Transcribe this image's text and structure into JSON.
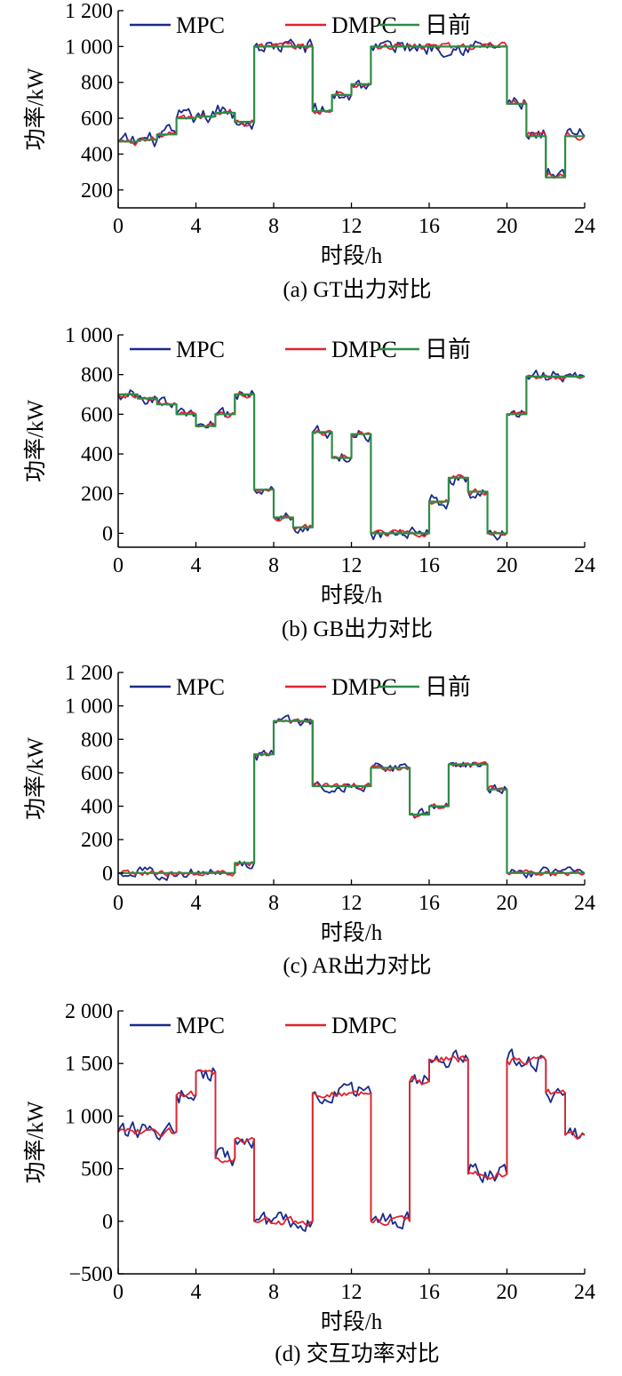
{
  "chart_data": [
    {
      "type": "line",
      "caption": "(a)  GT出力对比",
      "xlabel": "时段/h",
      "ylabel": "功率/kW",
      "xlim": [
        0,
        24
      ],
      "ylim": [
        100,
        1200
      ],
      "xticks": [
        0,
        4,
        8,
        12,
        16,
        20,
        24
      ],
      "xtick_labels": [
        "0",
        "4",
        "8",
        "12",
        "16",
        "20",
        "24"
      ],
      "yticks": [
        200,
        400,
        600,
        800,
        1000,
        1200
      ],
      "ytick_labels": [
        "200",
        "400",
        "600",
        "800",
        "1 000",
        "1 200"
      ],
      "legend": "top-left",
      "series": [
        {
          "name": "MPC",
          "color": "#1a2a8a",
          "noise": 38
        },
        {
          "name": "DMPC",
          "color": "#e0242c",
          "noise": 18
        },
        {
          "name": "日前",
          "color": "#2e8b45",
          "noise": 0
        }
      ],
      "segments": [
        {
          "start": 0,
          "end": 1,
          "value": 470
        },
        {
          "start": 1,
          "end": 2,
          "value": 480
        },
        {
          "start": 2,
          "end": 3,
          "value": 510
        },
        {
          "start": 3,
          "end": 4,
          "value": 600
        },
        {
          "start": 4,
          "end": 5,
          "value": 610
        },
        {
          "start": 5,
          "end": 6,
          "value": 630
        },
        {
          "start": 6,
          "end": 7,
          "value": 580
        },
        {
          "start": 7,
          "end": 10,
          "value": 1000
        },
        {
          "start": 10,
          "end": 11,
          "value": 640
        },
        {
          "start": 11,
          "end": 12,
          "value": 730
        },
        {
          "start": 12,
          "end": 13,
          "value": 790
        },
        {
          "start": 13,
          "end": 20,
          "value": 1000
        },
        {
          "start": 20,
          "end": 21,
          "value": 680
        },
        {
          "start": 21,
          "end": 22,
          "value": 500
        },
        {
          "start": 22,
          "end": 23,
          "value": 270
        },
        {
          "start": 23,
          "end": 24,
          "value": 500
        }
      ]
    },
    {
      "type": "line",
      "caption": "(b)  GB出力对比",
      "xlabel": "时段/h",
      "ylabel": "功率/kW",
      "xlim": [
        0,
        24
      ],
      "ylim": [
        -70,
        1000
      ],
      "xticks": [
        0,
        4,
        8,
        12,
        16,
        20,
        24
      ],
      "xtick_labels": [
        "0",
        "4",
        "8",
        "12",
        "16",
        "20",
        "24"
      ],
      "yticks": [
        0,
        200,
        400,
        600,
        800,
        1000
      ],
      "ytick_labels": [
        "0",
        "200",
        "400",
        "600",
        "800",
        "1 000"
      ],
      "legend": "top-left",
      "series": [
        {
          "name": "MPC",
          "color": "#1a2a8a",
          "noise": 28
        },
        {
          "name": "DMPC",
          "color": "#e0242c",
          "noise": 14
        },
        {
          "name": "日前",
          "color": "#2e8b45",
          "noise": 0
        }
      ],
      "segments": [
        {
          "start": 0,
          "end": 1,
          "value": 700
        },
        {
          "start": 1,
          "end": 2,
          "value": 680
        },
        {
          "start": 2,
          "end": 3,
          "value": 650
        },
        {
          "start": 3,
          "end": 4,
          "value": 600
        },
        {
          "start": 4,
          "end": 5,
          "value": 540
        },
        {
          "start": 5,
          "end": 6,
          "value": 600
        },
        {
          "start": 6,
          "end": 7,
          "value": 700
        },
        {
          "start": 7,
          "end": 8,
          "value": 220
        },
        {
          "start": 8,
          "end": 9,
          "value": 80
        },
        {
          "start": 9,
          "end": 10,
          "value": 30
        },
        {
          "start": 10,
          "end": 11,
          "value": 510
        },
        {
          "start": 11,
          "end": 12,
          "value": 380
        },
        {
          "start": 12,
          "end": 13,
          "value": 500
        },
        {
          "start": 13,
          "end": 16,
          "value": 0
        },
        {
          "start": 16,
          "end": 17,
          "value": 160
        },
        {
          "start": 17,
          "end": 18,
          "value": 280
        },
        {
          "start": 18,
          "end": 19,
          "value": 210
        },
        {
          "start": 19,
          "end": 20,
          "value": 0
        },
        {
          "start": 20,
          "end": 21,
          "value": 600
        },
        {
          "start": 21,
          "end": 24,
          "value": 790
        }
      ]
    },
    {
      "type": "line",
      "caption": "(c)  AR出力对比",
      "xlabel": "时段/h",
      "ylabel": "功率/kW",
      "xlim": [
        0,
        24
      ],
      "ylim": [
        -70,
        1200
      ],
      "xticks": [
        0,
        4,
        8,
        12,
        16,
        20,
        24
      ],
      "xtick_labels": [
        "0",
        "4",
        "8",
        "12",
        "16",
        "20",
        "24"
      ],
      "yticks": [
        0,
        200,
        400,
        600,
        800,
        1000,
        1200
      ],
      "ytick_labels": [
        "0",
        "200",
        "400",
        "600",
        "800",
        "1 000",
        "1 200"
      ],
      "legend": "top-left",
      "series": [
        {
          "name": "MPC",
          "color": "#1a2a8a",
          "noise": 28
        },
        {
          "name": "DMPC",
          "color": "#e0242c",
          "noise": 14
        },
        {
          "name": "日前",
          "color": "#2e8b45",
          "noise": 0
        }
      ],
      "segments": [
        {
          "start": 0,
          "end": 6,
          "value": 0
        },
        {
          "start": 6,
          "end": 7,
          "value": 60
        },
        {
          "start": 7,
          "end": 8,
          "value": 710
        },
        {
          "start": 8,
          "end": 10,
          "value": 910
        },
        {
          "start": 10,
          "end": 13,
          "value": 520
        },
        {
          "start": 13,
          "end": 15,
          "value": 630
        },
        {
          "start": 15,
          "end": 16,
          "value": 350
        },
        {
          "start": 16,
          "end": 17,
          "value": 400
        },
        {
          "start": 17,
          "end": 19,
          "value": 650
        },
        {
          "start": 19,
          "end": 20,
          "value": 500
        },
        {
          "start": 20,
          "end": 24,
          "value": 0
        }
      ]
    },
    {
      "type": "line",
      "caption": "(d)  交互功率对比",
      "xlabel": "时段/h",
      "ylabel": "功率/kW",
      "xlim": [
        0,
        24
      ],
      "ylim": [
        -500,
        2000
      ],
      "xticks": [
        0,
        4,
        8,
        12,
        16,
        20,
        24
      ],
      "xtick_labels": [
        "0",
        "4",
        "8",
        "12",
        "16",
        "20",
        "24"
      ],
      "yticks": [
        -500,
        0,
        500,
        1000,
        1500,
        2000
      ],
      "ytick_labels": [
        "−500",
        "0",
        "500",
        "1 000",
        "1 500",
        "2 000"
      ],
      "legend": "top-left",
      "series": [
        {
          "name": "MPC",
          "color": "#1a2a8a",
          "noise": 75
        },
        {
          "name": "DMPC",
          "color": "#e0242c",
          "noise": 32
        }
      ],
      "segments": [
        {
          "start": 0,
          "end": 3,
          "value": 850
        },
        {
          "start": 3,
          "end": 4,
          "value": 1200
        },
        {
          "start": 4,
          "end": 5,
          "value": 1420
        },
        {
          "start": 5,
          "end": 6,
          "value": 600
        },
        {
          "start": 6,
          "end": 7,
          "value": 780
        },
        {
          "start": 7,
          "end": 10,
          "value": 0
        },
        {
          "start": 10,
          "end": 13,
          "value": 1220
        },
        {
          "start": 13,
          "end": 15,
          "value": 0
        },
        {
          "start": 15,
          "end": 16,
          "value": 1330
        },
        {
          "start": 16,
          "end": 18,
          "value": 1540
        },
        {
          "start": 18,
          "end": 20,
          "value": 450
        },
        {
          "start": 20,
          "end": 22,
          "value": 1530
        },
        {
          "start": 22,
          "end": 23,
          "value": 1220
        },
        {
          "start": 23,
          "end": 24,
          "value": 820
        }
      ]
    }
  ]
}
